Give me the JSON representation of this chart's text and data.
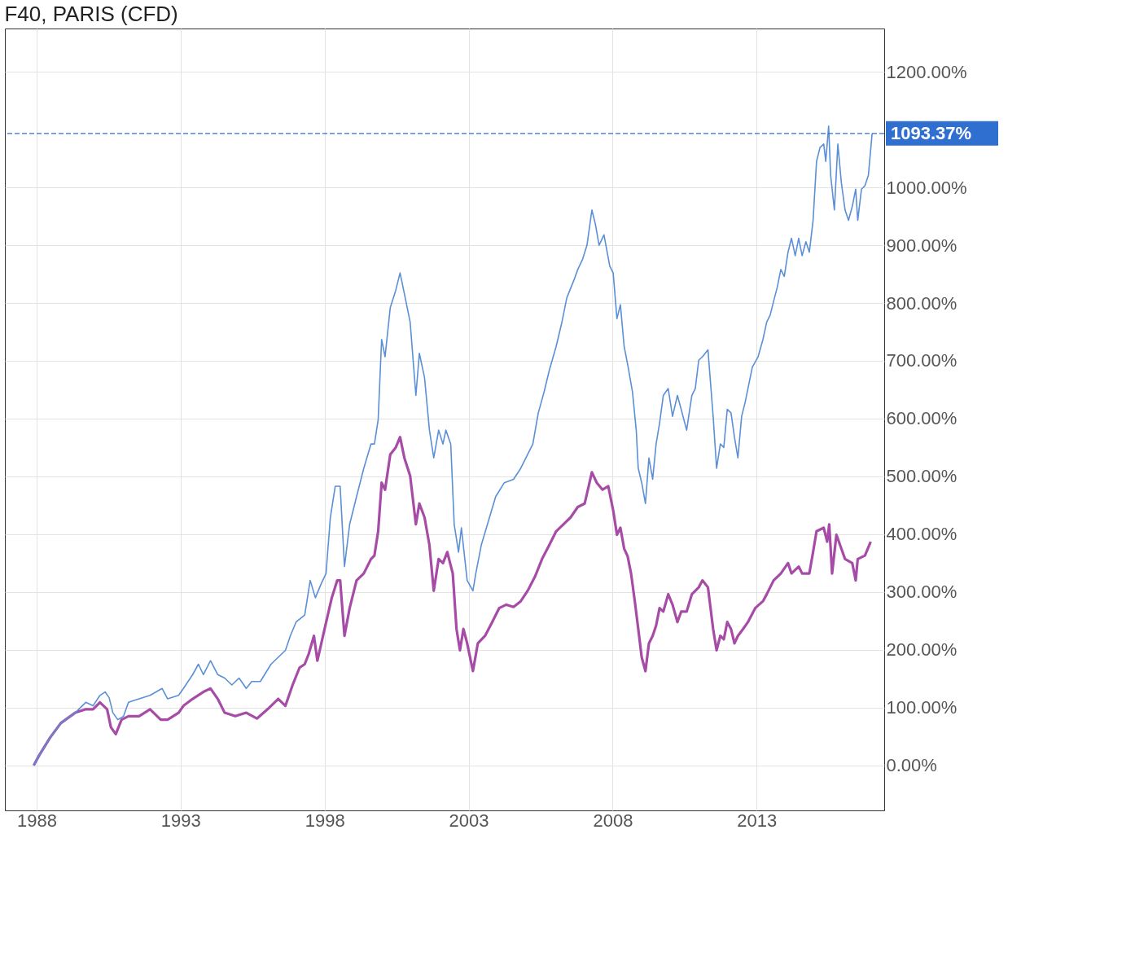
{
  "chart_data": {
    "type": "line",
    "title": "F40, PARIS (CFD)",
    "xlim": [
      1986.9,
      2017.43
    ],
    "xticks": [
      1988,
      1993,
      1998,
      2003,
      2008,
      2013
    ],
    "ylim": [
      -78,
      1275
    ],
    "yticks": [
      {
        "value": 0,
        "label": "0.00%"
      },
      {
        "value": 100,
        "label": "100.00%"
      },
      {
        "value": 200,
        "label": "200.00%"
      },
      {
        "value": 300,
        "label": "300.00%"
      },
      {
        "value": 400,
        "label": "400.00%"
      },
      {
        "value": 500,
        "label": "500.00%"
      },
      {
        "value": 600,
        "label": "600.00%"
      },
      {
        "value": 700,
        "label": "700.00%"
      },
      {
        "value": 800,
        "label": "800.00%"
      },
      {
        "value": 900,
        "label": "900.00%"
      },
      {
        "value": 1000,
        "label": "1000.00%"
      },
      {
        "value": 1200,
        "label": "1200.00%"
      }
    ],
    "grid": true,
    "marker": "none",
    "line_style": "solid",
    "ref_lines": [
      {
        "axis": "y",
        "value": 1093.37,
        "label": "1093.37%",
        "color": "#2f6fd0",
        "line_style": "dashed"
      }
    ],
    "series": [
      {
        "color": "#5b8fd6",
        "x": [
          1987.9,
          1988.1,
          1988.47,
          1988.84,
          1989.34,
          1989.71,
          1989.96,
          1990.2,
          1990.38,
          1990.52,
          1990.65,
          1990.82,
          1991.02,
          1991.19,
          1991.56,
          1991.94,
          1992.36,
          1992.55,
          1992.93,
          1993.1,
          1993.42,
          1993.62,
          1993.79,
          1994.04,
          1994.29,
          1994.53,
          1994.78,
          1995.03,
          1995.28,
          1995.47,
          1995.77,
          1996.14,
          1996.39,
          1996.64,
          1996.81,
          1997.01,
          1997.31,
          1997.5,
          1997.68,
          1997.88,
          1998.05,
          1998.2,
          1998.37,
          1998.54,
          1998.69,
          1998.87,
          1999.11,
          1999.36,
          1999.61,
          1999.73,
          1999.86,
          1999.98,
          2000.1,
          2000.28,
          2000.47,
          2000.62,
          2000.77,
          2000.97,
          2001.17,
          2001.29,
          2001.47,
          2001.64,
          2001.79,
          2001.96,
          2002.11,
          2002.21,
          2002.38,
          2002.5,
          2002.65,
          2002.75,
          2002.95,
          2003.15,
          2003.25,
          2003.44,
          2003.69,
          2003.94,
          2004.24,
          2004.56,
          2004.81,
          2005.05,
          2005.23,
          2005.42,
          2005.62,
          2005.8,
          2006.04,
          2006.24,
          2006.41,
          2006.66,
          2006.79,
          2006.96,
          2007.11,
          2007.28,
          2007.4,
          2007.53,
          2007.7,
          2007.9,
          2008.02,
          2008.15,
          2008.27,
          2008.4,
          2008.54,
          2008.69,
          2008.82,
          2008.89,
          2009.01,
          2009.14,
          2009.26,
          2009.39,
          2009.51,
          2009.63,
          2009.76,
          2009.93,
          2010.08,
          2010.25,
          2010.38,
          2010.57,
          2010.75,
          2010.87,
          2010.99,
          2011.12,
          2011.31,
          2011.49,
          2011.61,
          2011.74,
          2011.86,
          2011.98,
          2012.11,
          2012.23,
          2012.35,
          2012.48,
          2012.6,
          2012.85,
          2013.05,
          2013.22,
          2013.35,
          2013.47,
          2013.59,
          2013.72,
          2013.84,
          2013.96,
          2014.09,
          2014.21,
          2014.34,
          2014.46,
          2014.58,
          2014.71,
          2014.83,
          2014.96,
          2015.08,
          2015.2,
          2015.33,
          2015.4,
          2015.5,
          2015.57,
          2015.7,
          2015.82,
          2015.94,
          2016.07,
          2016.19,
          2016.32,
          2016.44,
          2016.51,
          2016.64,
          2016.76,
          2016.88,
          2017.01
        ],
        "values": [
          0,
          18,
          48,
          73,
          91,
          109,
          103,
          121,
          127,
          117,
          91,
          79,
          85,
          109,
          115,
          121,
          133,
          115,
          121,
          133,
          157,
          175,
          157,
          181,
          157,
          151,
          139,
          151,
          133,
          145,
          145,
          175,
          187,
          199,
          224,
          248,
          260,
          320,
          290,
          314,
          332,
          429,
          483,
          483,
          344,
          417,
          465,
          514,
          556,
          556,
          598,
          737,
          707,
          792,
          822,
          852,
          816,
          767,
          640,
          713,
          671,
          580,
          532,
          580,
          556,
          580,
          556,
          417,
          369,
          411,
          320,
          302,
          332,
          381,
          423,
          465,
          489,
          495,
          514,
          538,
          556,
          610,
          646,
          683,
          725,
          767,
          809,
          840,
          858,
          876,
          900,
          961,
          937,
          900,
          918,
          864,
          852,
          773,
          797,
          725,
          689,
          646,
          580,
          514,
          489,
          453,
          532,
          495,
          556,
          592,
          640,
          652,
          604,
          640,
          616,
          580,
          640,
          652,
          701,
          707,
          719,
          604,
          514,
          556,
          550,
          616,
          610,
          568,
          532,
          604,
          628,
          689,
          707,
          737,
          767,
          779,
          803,
          828,
          858,
          846,
          888,
          912,
          882,
          912,
          882,
          906,
          888,
          943,
          1045,
          1069,
          1075,
          1045,
          1106,
          1021,
          961,
          1075,
          1009,
          961,
          943,
          967,
          997,
          943,
          997,
          1003,
          1021,
          1093.37
        ]
      },
      {
        "color": "#a64ca6",
        "x": [
          1987.9,
          1988.1,
          1988.47,
          1988.84,
          1989.34,
          1989.71,
          1989.96,
          1990.2,
          1990.45,
          1990.58,
          1990.75,
          1990.95,
          1991.19,
          1991.56,
          1991.94,
          1992.31,
          1992.55,
          1992.93,
          1993.1,
          1993.42,
          1993.79,
          1994.04,
          1994.29,
          1994.53,
          1994.9,
          1995.28,
          1995.65,
          1996.02,
          1996.39,
          1996.64,
          1996.89,
          1997.13,
          1997.31,
          1997.45,
          1997.63,
          1997.75,
          1998.0,
          1998.25,
          1998.44,
          1998.54,
          1998.69,
          1998.87,
          1999.11,
          1999.36,
          1999.61,
          1999.73,
          1999.86,
          1999.98,
          2000.1,
          2000.28,
          2000.47,
          2000.62,
          2000.77,
          2000.97,
          2001.17,
          2001.29,
          2001.47,
          2001.64,
          2001.79,
          2001.96,
          2002.11,
          2002.26,
          2002.45,
          2002.58,
          2002.7,
          2002.82,
          2002.95,
          2003.15,
          2003.32,
          2003.57,
          2003.82,
          2004.06,
          2004.31,
          2004.56,
          2004.81,
          2005.05,
          2005.3,
          2005.55,
          2005.8,
          2006.04,
          2006.29,
          2006.54,
          2006.79,
          2007.03,
          2007.28,
          2007.45,
          2007.65,
          2007.85,
          2008.02,
          2008.15,
          2008.27,
          2008.4,
          2008.52,
          2008.64,
          2008.77,
          2008.89,
          2009.01,
          2009.14,
          2009.26,
          2009.39,
          2009.51,
          2009.63,
          2009.76,
          2009.93,
          2010.08,
          2010.25,
          2010.38,
          2010.57,
          2010.75,
          2010.99,
          2011.12,
          2011.31,
          2011.49,
          2011.61,
          2011.74,
          2011.86,
          2011.98,
          2012.11,
          2012.23,
          2012.35,
          2012.53,
          2012.7,
          2012.95,
          2013.22,
          2013.35,
          2013.59,
          2013.84,
          2014.09,
          2014.21,
          2014.46,
          2014.58,
          2014.83,
          2014.96,
          2015.08,
          2015.33,
          2015.45,
          2015.52,
          2015.62,
          2015.77,
          2015.94,
          2016.07,
          2016.32,
          2016.44,
          2016.51,
          2016.76,
          2016.96
        ],
        "values": [
          0,
          18,
          48,
          73,
          91,
          97,
          97,
          109,
          97,
          66,
          54,
          79,
          85,
          85,
          97,
          79,
          79,
          91,
          103,
          115,
          127,
          133,
          115,
          91,
          85,
          91,
          81,
          97,
          115,
          103,
          139,
          169,
          175,
          193,
          224,
          181,
          236,
          290,
          320,
          320,
          224,
          272,
          320,
          332,
          357,
          363,
          405,
          489,
          477,
          538,
          550,
          568,
          532,
          501,
          417,
          453,
          429,
          381,
          302,
          357,
          350,
          369,
          332,
          236,
          199,
          236,
          211,
          163,
          211,
          224,
          248,
          272,
          278,
          274,
          284,
          302,
          326,
          357,
          381,
          405,
          417,
          429,
          447,
          453,
          507,
          489,
          477,
          483,
          441,
          399,
          411,
          375,
          362,
          332,
          284,
          236,
          187,
          163,
          211,
          224,
          242,
          272,
          266,
          296,
          278,
          248,
          266,
          266,
          296,
          308,
          320,
          308,
          236,
          199,
          224,
          218,
          248,
          236,
          211,
          224,
          236,
          248,
          272,
          284,
          296,
          320,
          332,
          350,
          332,
          344,
          332,
          332,
          369,
          405,
          411,
          387,
          417,
          332,
          399,
          375,
          357,
          350,
          320,
          357,
          363,
          387
        ]
      }
    ]
  }
}
